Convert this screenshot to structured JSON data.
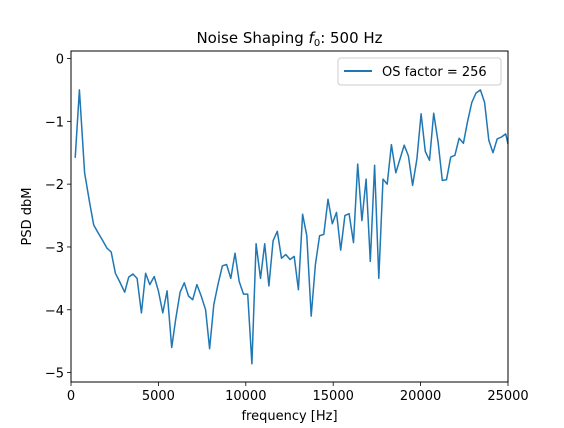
{
  "chart_data": {
    "type": "line",
    "title_prefix": "Noise Shaping ",
    "title_symbol": "f",
    "title_subscript": "0",
    "title_suffix": ": 500 Hz",
    "xlabel": "frequency [Hz]",
    "ylabel": "PSD dbM",
    "xlim": [
      0,
      25000
    ],
    "ylim": [
      -5.15,
      0.12
    ],
    "xticks": [
      0,
      5000,
      10000,
      15000,
      20000,
      25000
    ],
    "xtick_labels": [
      "0",
      "5000",
      "10000",
      "15000",
      "20000",
      "25000"
    ],
    "yticks": [
      0,
      -1,
      -2,
      -3,
      -4,
      -5
    ],
    "ytick_labels": [
      "0",
      "−1",
      "−2",
      "−3",
      "−4",
      "−5"
    ],
    "grid": false,
    "legend_position": "top-right",
    "series": [
      {
        "name": "OS factor = 256",
        "color": "#1f77b4",
        "x": [
          240,
          480,
          780,
          1070,
          1300,
          1560,
          1820,
          2060,
          2300,
          2540,
          2780,
          3070,
          3300,
          3540,
          3780,
          4030,
          4270,
          4510,
          4760,
          5000,
          5250,
          5500,
          5760,
          5990,
          6240,
          6480,
          6720,
          6960,
          7200,
          7450,
          7700,
          7930,
          8170,
          8420,
          8660,
          8900,
          9140,
          9380,
          9620,
          9870,
          10110,
          10350,
          10590,
          10840,
          11080,
          11320,
          11560,
          11800,
          12040,
          12290,
          12530,
          12770,
          13010,
          13250,
          13490,
          13740,
          13980,
          14220,
          14460,
          14700,
          14950,
          15190,
          15430,
          15670,
          15910,
          16160,
          16400,
          16640,
          16880,
          17120,
          17370,
          17610,
          17850,
          18090,
          18330,
          18580,
          18820,
          19060,
          19300,
          19540,
          19790,
          20030,
          20270,
          20510,
          20750,
          21000,
          21240,
          21480,
          21720,
          21960,
          22200,
          22450,
          22690,
          22930,
          23170,
          23420,
          23660,
          23900,
          24140,
          24380,
          24630,
          24870,
          25000
        ],
        "y": [
          -1.58,
          -0.5,
          -1.82,
          -2.3,
          -2.65,
          -2.78,
          -2.9,
          -3.02,
          -3.08,
          -3.42,
          -3.55,
          -3.72,
          -3.48,
          -3.43,
          -3.5,
          -4.05,
          -3.42,
          -3.6,
          -3.47,
          -3.7,
          -4.05,
          -3.7,
          -4.6,
          -4.15,
          -3.72,
          -3.57,
          -3.78,
          -3.84,
          -3.6,
          -3.78,
          -4.0,
          -4.62,
          -3.92,
          -3.58,
          -3.3,
          -3.28,
          -3.5,
          -3.1,
          -3.55,
          -3.75,
          -3.75,
          -4.86,
          -2.95,
          -3.5,
          -2.95,
          -3.62,
          -2.9,
          -2.75,
          -3.18,
          -3.12,
          -3.2,
          -3.15,
          -3.68,
          -2.48,
          -2.82,
          -4.1,
          -3.28,
          -2.82,
          -2.8,
          -2.24,
          -2.63,
          -2.45,
          -3.05,
          -2.5,
          -2.47,
          -2.93,
          -1.68,
          -2.58,
          -1.92,
          -3.23,
          -1.7,
          -3.5,
          -1.92,
          -2.0,
          -1.37,
          -1.82,
          -1.6,
          -1.38,
          -1.55,
          -2.02,
          -1.6,
          -0.88,
          -1.48,
          -1.62,
          -0.87,
          -1.33,
          -1.94,
          -1.93,
          -1.57,
          -1.54,
          -1.27,
          -1.35,
          -1.0,
          -0.7,
          -0.55,
          -0.5,
          -0.7,
          -1.3,
          -1.5,
          -1.28,
          -1.25,
          -1.2,
          -1.36
        ]
      }
    ]
  }
}
